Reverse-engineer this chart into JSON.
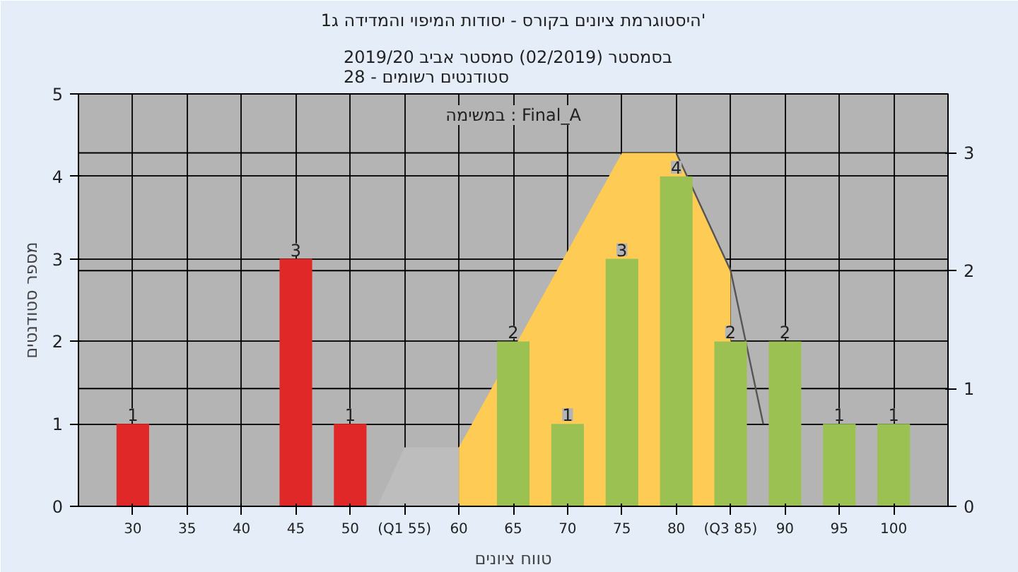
{
  "chart_data": {
    "type": "bar",
    "title": "היסטוגרמת ציונים בקורס - יסודות המיפוי והמדידה ג1'",
    "subtitle": "בסמסטר  (02/2019)  סמסטר אביב 2019/20\nסטודנטים רשומים - 28",
    "xlabel": "טווח ציונים",
    "ylabel": "מספר סטודנטים",
    "annotations": [
      "במשימה : Final_A"
    ],
    "xlim": [
      25,
      105
    ],
    "xticks": [
      {
        "value": 30,
        "label": "30"
      },
      {
        "value": 35,
        "label": "35"
      },
      {
        "value": 40,
        "label": "40"
      },
      {
        "value": 45,
        "label": "45"
      },
      {
        "value": 50,
        "label": "50"
      },
      {
        "value": 55,
        "label": "(Q1 55)"
      },
      {
        "value": 60,
        "label": "60"
      },
      {
        "value": 65,
        "label": "65"
      },
      {
        "value": 70,
        "label": "70"
      },
      {
        "value": 75,
        "label": "75"
      },
      {
        "value": 80,
        "label": "80"
      },
      {
        "value": 85,
        "label": "(Q3 85)"
      },
      {
        "value": 90,
        "label": "90"
      },
      {
        "value": 95,
        "label": "95"
      },
      {
        "value": 100,
        "label": "100"
      }
    ],
    "ylim": [
      0,
      5
    ],
    "yticks": [
      0,
      1,
      2,
      3,
      4,
      5
    ],
    "y2lim": [
      0,
      3.5
    ],
    "y2ticks": [
      0,
      1,
      2,
      3
    ],
    "grid": true,
    "series": [
      {
        "type": "area",
        "axis": "y2",
        "color": "#bdbdbd",
        "x": [
          52.5,
          55,
          60
        ],
        "values": [
          0,
          0.5,
          0.5
        ]
      },
      {
        "type": "area",
        "axis": "y2",
        "color": "#fecb55",
        "x": [
          60,
          75,
          80,
          85
        ],
        "values": [
          0.5,
          3,
          3,
          2
        ]
      },
      {
        "type": "line",
        "axis": "y2",
        "color": "#555555",
        "x": [
          80,
          85,
          88
        ],
        "values": [
          3,
          2,
          0.7
        ]
      },
      {
        "x": [
          30,
          45,
          50,
          65,
          70,
          75,
          80,
          85,
          90,
          95,
          100
        ],
        "values": [
          1,
          3,
          1,
          2,
          1,
          3,
          4,
          2,
          2,
          1,
          1
        ],
        "value_labels": [
          "1",
          "3",
          "1",
          "2",
          "1",
          "3",
          "4",
          "2",
          "2",
          "1",
          "1"
        ],
        "colors": [
          "#e02828",
          "#e02828",
          "#e02828",
          "#9cc153",
          "#9cc153",
          "#9cc153",
          "#9cc153",
          "#9cc153",
          "#9cc153",
          "#9cc153",
          "#9cc153"
        ]
      }
    ]
  }
}
